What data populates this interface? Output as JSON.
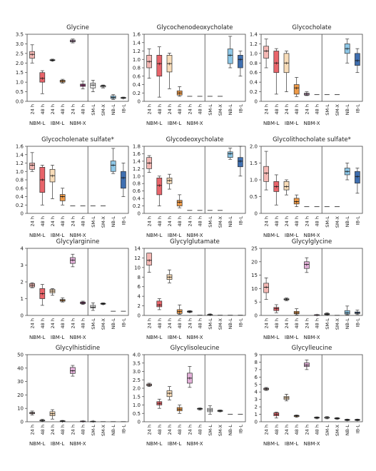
{
  "figure": {
    "tick_labels_time": [
      "24 h",
      "48 h"
    ],
    "tick_labels_single": [
      "SM-L",
      "SM-X",
      "NB-L",
      "IB-L"
    ],
    "group_labels": [
      "NBM-L",
      "IBM-L",
      "NBM-X"
    ],
    "group_colors": {
      "NBM-L": [
        "#f4b8b4",
        "#e8646a"
      ],
      "IBM-L": [
        "#f8dcb8",
        "#ee9a48"
      ],
      "NBM-X": [
        "#e2b0d8",
        "#b0428c"
      ],
      "SM-L": "#f2f2f2",
      "SM-X": "#eeeeee",
      "NB-L": "#8ec8e8",
      "IB-L": "#3f6fb0"
    }
  },
  "chart_data": [
    {
      "type": "box",
      "title": "Glycine",
      "ylim": [
        0,
        3.5
      ],
      "yticks": [
        "0.0",
        "0.5",
        "1.0",
        "1.5",
        "2.0",
        "2.5",
        "3.0",
        "3.5"
      ],
      "categories": [
        "NBM-L 24 h",
        "NBM-L 48 h",
        "IBM-L 24 h",
        "IBM-L 48 h",
        "NBM-X 24 h",
        "NBM-X 48 h",
        "SM-L",
        "SM-X",
        "NB-L",
        "IB-L"
      ],
      "boxes": [
        [
          2.0,
          2.25,
          2.45,
          2.6,
          2.95
        ],
        [
          0.4,
          1.0,
          1.2,
          1.5,
          1.6
        ],
        [
          2.1,
          2.13,
          2.15,
          2.17,
          2.2
        ],
        [
          0.95,
          1.0,
          1.05,
          1.1,
          1.15
        ],
        [
          3.05,
          3.1,
          3.15,
          3.2,
          3.25
        ],
        [
          0.65,
          0.78,
          0.85,
          0.9,
          1.05
        ],
        [
          0.5,
          0.7,
          0.85,
          0.95,
          1.1
        ],
        [
          0.7,
          0.75,
          0.8,
          0.82,
          0.85
        ],
        [
          0.1,
          0.15,
          0.2,
          0.28,
          0.35
        ],
        [
          0.15,
          0.17,
          0.18,
          0.2,
          0.22
        ]
      ]
    },
    {
      "type": "box",
      "title": "Glycochenodeoxycholate",
      "ylim": [
        0,
        1.6
      ],
      "yticks": [
        "0",
        "0.2",
        "0.4",
        "0.6",
        "0.8",
        "1.0",
        "1.2",
        "1.4",
        "1.6"
      ],
      "categories": [
        "NBM-L 24 h",
        "NBM-L 48 h",
        "IBM-L 24 h",
        "IBM-L 48 h",
        "NBM-X 24 h",
        "NBM-X 48 h",
        "SM-L",
        "SM-X",
        "NB-L",
        "IB-L"
      ],
      "boxes": [
        [
          0.55,
          0.8,
          0.95,
          1.1,
          1.25
        ],
        [
          0.1,
          0.6,
          0.9,
          1.1,
          1.3
        ],
        [
          0.3,
          0.7,
          0.9,
          1.1,
          1.15
        ],
        [
          0.12,
          0.15,
          0.2,
          0.25,
          0.35
        ],
        [
          0.12,
          0.12,
          0.12,
          0.12,
          0.12
        ],
        [
          0.12,
          0.12,
          0.12,
          0.12,
          0.12
        ],
        [
          0.12,
          0.12,
          0.12,
          0.12,
          0.12
        ],
        [
          0.12,
          0.12,
          0.12,
          0.12,
          0.12
        ],
        [
          0.8,
          0.9,
          1.1,
          1.25,
          1.55
        ],
        [
          0.6,
          0.8,
          1.0,
          1.1,
          1.2
        ]
      ]
    },
    {
      "type": "box",
      "title": "Glycocholate",
      "ylim": [
        0,
        1.4
      ],
      "yticks": [
        "0",
        "0.2",
        "0.4",
        "0.6",
        "0.8",
        "1.0",
        "1.2",
        "1.4"
      ],
      "categories": [
        "NBM-L 24 h",
        "NBM-L 48 h",
        "IBM-L 24 h",
        "IBM-L 48 h",
        "NBM-X 24 h",
        "NBM-X 48 h",
        "SM-L",
        "SM-X",
        "NB-L",
        "IB-L"
      ],
      "boxes": [
        [
          0.7,
          0.9,
          1.05,
          1.15,
          1.3
        ],
        [
          0.15,
          0.6,
          0.8,
          1.05,
          1.1
        ],
        [
          0.2,
          0.6,
          0.8,
          1.0,
          1.05
        ],
        [
          0.1,
          0.15,
          0.28,
          0.35,
          0.5
        ],
        [
          0.12,
          0.13,
          0.15,
          0.17,
          0.2
        ],
        [
          0.14,
          0.14,
          0.14,
          0.14,
          0.14
        ],
        [
          0.14,
          0.14,
          0.14,
          0.14,
          0.14
        ],
        [
          0.14,
          0.14,
          0.14,
          0.14,
          0.14
        ],
        [
          0.8,
          1.0,
          1.1,
          1.2,
          1.3
        ],
        [
          0.6,
          0.75,
          0.85,
          1.0,
          1.1
        ]
      ]
    },
    {
      "type": "box",
      "title": "Glycocholenate sulfate*",
      "ylim": [
        0,
        1.6
      ],
      "yticks": [
        "0",
        "0.2",
        "0.4",
        "0.6",
        "0.8",
        "1.0",
        "1.2",
        "1.4",
        "1.6"
      ],
      "categories": [
        "NBM-L 24 h",
        "NBM-L 48 h",
        "IBM-L 24 h",
        "IBM-L 48 h",
        "NBM-X 24 h",
        "NBM-X 48 h",
        "SM-L",
        "SM-X",
        "NB-L",
        "IB-L"
      ],
      "boxes": [
        [
          1.0,
          1.05,
          1.15,
          1.2,
          1.45
        ],
        [
          0.2,
          0.5,
          0.8,
          1.1,
          1.15
        ],
        [
          0.35,
          0.75,
          0.9,
          1.05,
          1.15
        ],
        [
          0.2,
          0.3,
          0.4,
          0.45,
          0.6
        ],
        [
          0.18,
          0.18,
          0.18,
          0.18,
          0.18
        ],
        [
          0.18,
          0.18,
          0.18,
          0.18,
          0.18
        ],
        [
          0.18,
          0.18,
          0.18,
          0.18,
          0.18
        ],
        [
          0.18,
          0.18,
          0.18,
          0.18,
          0.18
        ],
        [
          0.95,
          1.0,
          1.15,
          1.25,
          1.55
        ],
        [
          0.4,
          0.6,
          0.85,
          1.0,
          1.2
        ]
      ]
    },
    {
      "type": "box",
      "title": "Glycodeoxycholate",
      "ylim": [
        0,
        1.8
      ],
      "yticks": [
        "0",
        "0.2",
        "0.4",
        "0.6",
        "0.8",
        "1.0",
        "1.2",
        "1.4",
        "1.6",
        "1.8"
      ],
      "categories": [
        "NBM-L 24 h",
        "NBM-L 48 h",
        "IBM-L 24 h",
        "IBM-L 48 h",
        "NBM-X 24 h",
        "NBM-X 48 h",
        "SM-L",
        "SM-X",
        "NB-L",
        "IB-L"
      ],
      "boxes": [
        [
          1.1,
          1.2,
          1.35,
          1.5,
          1.55
        ],
        [
          0.2,
          0.5,
          0.75,
          0.95,
          1.0
        ],
        [
          0.65,
          0.8,
          0.88,
          0.95,
          1.05
        ],
        [
          0.15,
          0.2,
          0.3,
          0.35,
          0.5
        ],
        [
          0.08,
          0.08,
          0.08,
          0.08,
          0.08
        ],
        [
          0.08,
          0.08,
          0.08,
          0.08,
          0.08
        ],
        [
          0.08,
          0.08,
          0.08,
          0.08,
          0.08
        ],
        [
          0.08,
          0.08,
          0.08,
          0.08,
          0.08
        ],
        [
          1.45,
          1.5,
          1.6,
          1.65,
          1.75
        ],
        [
          1.0,
          1.25,
          1.4,
          1.5,
          1.8
        ]
      ]
    },
    {
      "type": "box",
      "title": "Glycolithocholate sulfate*",
      "ylim": [
        0,
        2.0
      ],
      "yticks": [
        "0",
        "0.5",
        "1.0",
        "1.5",
        "2.0"
      ],
      "categories": [
        "NBM-L 24 h",
        "NBM-L 48 h",
        "IBM-L 24 h",
        "IBM-L 48 h",
        "NBM-X 24 h",
        "NBM-X 48 h",
        "SM-L",
        "SM-X",
        "NB-L",
        "IB-L"
      ],
      "boxes": [
        [
          0.7,
          0.95,
          1.2,
          1.4,
          1.85
        ],
        [
          0.25,
          0.65,
          0.8,
          0.95,
          1.15
        ],
        [
          0.55,
          0.7,
          0.8,
          0.95,
          1.0
        ],
        [
          0.2,
          0.28,
          0.35,
          0.45,
          0.55
        ],
        [
          0.2,
          0.2,
          0.2,
          0.2,
          0.2
        ],
        [
          0.2,
          0.2,
          0.2,
          0.2,
          0.2
        ],
        [
          0.2,
          0.2,
          0.2,
          0.2,
          0.2
        ],
        [
          0.2,
          0.2,
          0.2,
          0.2,
          0.2
        ],
        [
          1.0,
          1.15,
          1.25,
          1.35,
          1.5
        ],
        [
          0.6,
          0.9,
          1.1,
          1.25,
          1.35
        ]
      ]
    },
    {
      "type": "box",
      "title": "Glycylarginine",
      "ylim": [
        0,
        4
      ],
      "yticks": [
        "0",
        "1",
        "2",
        "3",
        "4"
      ],
      "categories": [
        "NBM-L 24 h",
        "NBM-L 48 h",
        "IBM-L 24 h",
        "IBM-L 48 h",
        "NBM-X 24 h",
        "NBM-X 48 h",
        "SM-L",
        "SM-X",
        "NB-L",
        "IB-L"
      ],
      "boxes": [
        [
          1.65,
          1.7,
          1.8,
          1.9,
          1.95
        ],
        [
          0.6,
          1.0,
          1.3,
          1.6,
          1.85
        ],
        [
          1.2,
          1.35,
          1.45,
          1.55,
          1.6
        ],
        [
          0.8,
          0.85,
          0.9,
          0.95,
          1.05
        ],
        [
          2.9,
          3.1,
          3.3,
          3.45,
          3.65
        ],
        [
          0.65,
          0.7,
          0.75,
          0.8,
          0.85
        ],
        [
          0.3,
          0.45,
          0.5,
          0.6,
          0.75
        ],
        [
          0.65,
          0.68,
          0.7,
          0.72,
          0.75
        ],
        [
          0.25,
          0.25,
          0.25,
          0.25,
          0.25
        ],
        [
          0.25,
          0.25,
          0.25,
          0.25,
          0.25
        ]
      ]
    },
    {
      "type": "box",
      "title": "Glycylglutamate",
      "ylim": [
        0,
        14
      ],
      "yticks": [
        "0",
        "2",
        "4",
        "6",
        "8",
        "10",
        "12",
        "14"
      ],
      "categories": [
        "NBM-L 24 h",
        "NBM-L 48 h",
        "IBM-L 24 h",
        "IBM-L 48 h",
        "NBM-X 24 h",
        "NBM-X 48 h",
        "SM-L",
        "SM-X",
        "NB-L",
        "IB-L"
      ],
      "boxes": [
        [
          9.0,
          10.5,
          11.5,
          13.0,
          13.0
        ],
        [
          1.2,
          1.8,
          2.2,
          3.0,
          3.5
        ],
        [
          6.8,
          7.5,
          8.0,
          8.5,
          9.5
        ],
        [
          0.2,
          0.4,
          0.8,
          1.2,
          2.2
        ],
        [
          0.6,
          0.7,
          0.8,
          0.9,
          1.0
        ],
        [
          0.05,
          0.05,
          0.05,
          0.05,
          0.05
        ],
        [
          0.05,
          0.1,
          0.15,
          0.2,
          0.3
        ],
        [
          0.05,
          0.05,
          0.05,
          0.05,
          0.05
        ],
        [
          0.05,
          0.05,
          0.05,
          0.05,
          0.05
        ],
        [
          0.05,
          0.05,
          0.05,
          0.05,
          0.05
        ]
      ]
    },
    {
      "type": "box",
      "title": "Glycylglycine",
      "ylim": [
        0,
        25
      ],
      "yticks": [
        "0",
        "5",
        "10",
        "15",
        "20",
        "25"
      ],
      "categories": [
        "NBM-L 24 h",
        "NBM-L 48 h",
        "IBM-L 24 h",
        "IBM-L 48 h",
        "NBM-X 24 h",
        "NBM-X 48 h",
        "SM-L",
        "SM-X",
        "NB-L",
        "IB-L"
      ],
      "boxes": [
        [
          6.0,
          8.5,
          10.5,
          12.0,
          14.0
        ],
        [
          1.0,
          1.8,
          2.5,
          3.0,
          4.0
        ],
        [
          5.5,
          5.8,
          6.0,
          6.2,
          6.5
        ],
        [
          0.2,
          0.6,
          1.0,
          1.5,
          2.5
        ],
        [
          16.0,
          17.5,
          19.0,
          20.0,
          21.5
        ],
        [
          0.1,
          0.15,
          0.2,
          0.25,
          0.3
        ],
        [
          0.2,
          0.3,
          0.5,
          0.7,
          1.0
        ],
        [
          0.05,
          0.05,
          0.05,
          0.05,
          0.05
        ],
        [
          0.2,
          0.5,
          1.0,
          1.8,
          3.5
        ],
        [
          0.3,
          0.7,
          1.0,
          1.3,
          2.0
        ]
      ]
    },
    {
      "type": "box",
      "title": "Glycylhistidine",
      "ylim": [
        0,
        50
      ],
      "yticks": [
        "0",
        "10",
        "20",
        "30",
        "40",
        "50"
      ],
      "categories": [
        "NBM-L 24 h",
        "NBM-L 48 h",
        "IBM-L 24 h",
        "IBM-L 48 h",
        "NBM-X 24 h",
        "NBM-X 48 h",
        "SM-L",
        "SM-X",
        "NB-L",
        "IB-L"
      ],
      "boxes": [
        [
          5.0,
          6.0,
          6.5,
          7.0,
          8.0
        ],
        [
          0.5,
          0.8,
          1.0,
          1.2,
          1.8
        ],
        [
          2.0,
          4.5,
          6.0,
          7.5,
          9.0
        ],
        [
          0.2,
          0.4,
          0.5,
          0.7,
          1.0
        ],
        [
          34.0,
          36.0,
          38.0,
          40.5,
          42.0
        ],
        [
          0.2,
          0.3,
          0.4,
          0.5,
          0.6
        ],
        [
          0.1,
          0.2,
          0.3,
          0.4,
          0.5
        ],
        [
          0.1,
          0.1,
          0.1,
          0.1,
          0.1
        ],
        [
          0.1,
          0.1,
          0.1,
          0.1,
          0.1
        ],
        [
          0.1,
          0.1,
          0.1,
          0.1,
          0.1
        ]
      ]
    },
    {
      "type": "box",
      "title": "Glycylisoleucine",
      "ylim": [
        0,
        4.0
      ],
      "yticks": [
        "0",
        "0.5",
        "1.0",
        "1.5",
        "2.0",
        "2.5",
        "3.0",
        "3.5",
        "4.0"
      ],
      "categories": [
        "NBM-L 24 h",
        "NBM-L 48 h",
        "IBM-L 24 h",
        "IBM-L 48 h",
        "NBM-X 24 h",
        "NBM-X 48 h",
        "SM-L",
        "SM-X",
        "NB-L",
        "IB-L"
      ],
      "boxes": [
        [
          2.1,
          2.15,
          2.2,
          2.25,
          2.3
        ],
        [
          0.8,
          1.0,
          1.1,
          1.2,
          1.35
        ],
        [
          1.3,
          1.5,
          1.7,
          1.85,
          2.1
        ],
        [
          0.5,
          0.65,
          0.75,
          0.85,
          1.0
        ],
        [
          2.05,
          2.3,
          2.6,
          2.9,
          3.3
        ],
        [
          0.7,
          0.75,
          0.78,
          0.8,
          0.82
        ],
        [
          0.45,
          0.6,
          0.7,
          0.8,
          0.95
        ],
        [
          0.6,
          0.62,
          0.65,
          0.68,
          0.7
        ],
        [
          0.45,
          0.45,
          0.45,
          0.45,
          0.45
        ],
        [
          0.45,
          0.45,
          0.45,
          0.45,
          0.45
        ]
      ]
    },
    {
      "type": "box",
      "title": "Glycylleucine",
      "ylim": [
        0,
        9
      ],
      "yticks": [
        "0",
        "1",
        "2",
        "3",
        "4",
        "5",
        "6",
        "7",
        "8",
        "9"
      ],
      "categories": [
        "NBM-L 24 h",
        "NBM-L 48 h",
        "IBM-L 24 h",
        "IBM-L 48 h",
        "NBM-X 24 h",
        "NBM-X 48 h",
        "SM-L",
        "SM-X",
        "NB-L",
        "IB-L"
      ],
      "boxes": [
        [
          4.2,
          4.3,
          4.4,
          4.5,
          4.6
        ],
        [
          0.5,
          0.8,
          1.0,
          1.2,
          1.3
        ],
        [
          2.8,
          3.0,
          3.2,
          3.4,
          3.7
        ],
        [
          0.6,
          0.7,
          0.8,
          0.85,
          0.9
        ],
        [
          7.0,
          7.4,
          7.6,
          7.9,
          8.3
        ],
        [
          0.4,
          0.5,
          0.55,
          0.6,
          0.65
        ],
        [
          0.4,
          0.5,
          0.55,
          0.6,
          0.7
        ],
        [
          0.35,
          0.4,
          0.45,
          0.5,
          0.55
        ],
        [
          0.15,
          0.2,
          0.25,
          0.3,
          0.35
        ],
        [
          0.15,
          0.2,
          0.25,
          0.3,
          0.35
        ]
      ]
    }
  ]
}
